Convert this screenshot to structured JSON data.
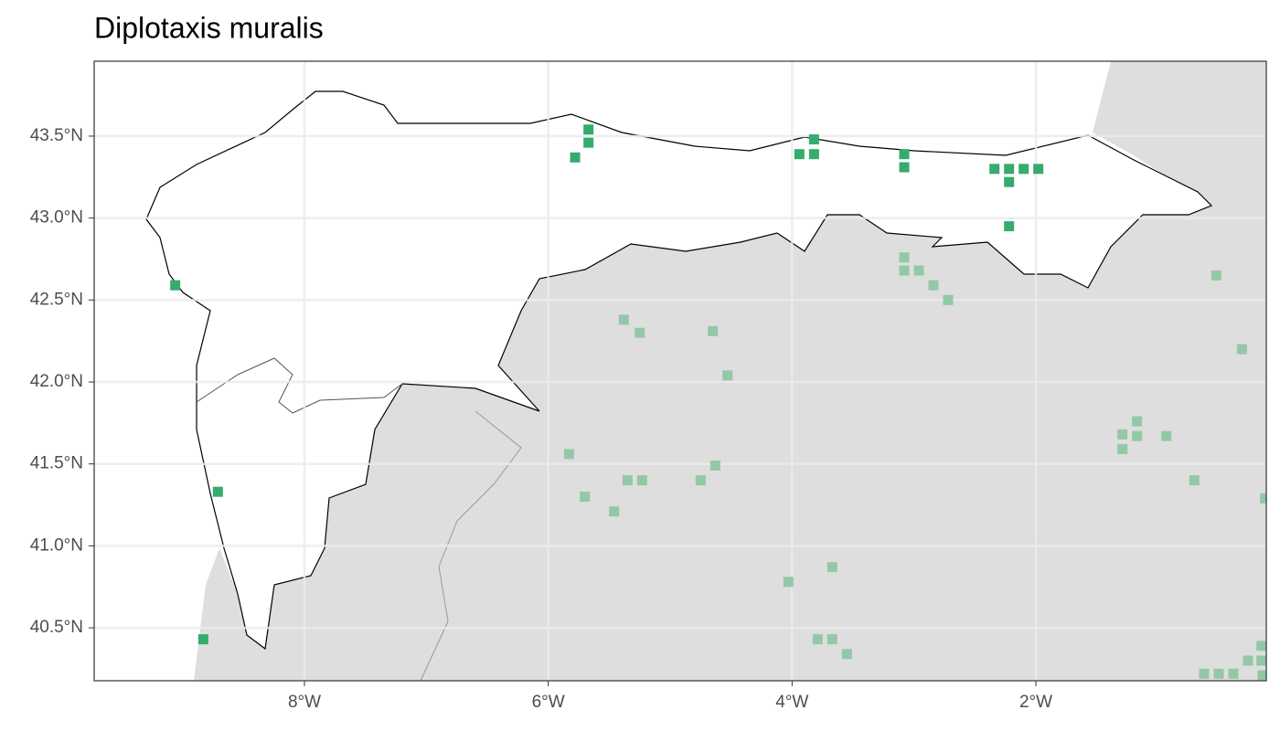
{
  "chart_data": {
    "type": "scatter",
    "title": "Diplotaxis muralis",
    "xlim": [
      -9.725,
      -0.11
    ],
    "ylim": [
      40.177,
      43.957
    ],
    "xticks": [
      {
        "value": -8,
        "label": "8°W"
      },
      {
        "value": -6,
        "label": "6°W"
      },
      {
        "value": -4,
        "label": "4°W"
      },
      {
        "value": -2,
        "label": "2°W"
      }
    ],
    "yticks": [
      {
        "value": 40.5,
        "label": "40.5°N"
      },
      {
        "value": 41,
        "label": "41.0°N"
      },
      {
        "value": 41.5,
        "label": "41.5°N"
      },
      {
        "value": 42,
        "label": "42.0°N"
      },
      {
        "value": 42.5,
        "label": "42.5°N"
      },
      {
        "value": 43,
        "label": "43.0°N"
      },
      {
        "value": 43.5,
        "label": "43.5°N"
      }
    ],
    "grid": true,
    "series": [
      {
        "color": "#35ab6c",
        "x": [
          -9.06,
          -8.71,
          -8.83,
          -5.78,
          -5.67,
          -5.67,
          -3.94,
          -3.82,
          -3.82,
          -3.08,
          -3.08,
          -2.34,
          -2.22,
          -2.1,
          -1.98,
          -2.22,
          -2.22
        ],
        "y": [
          42.59,
          41.33,
          40.43,
          43.37,
          43.46,
          43.54,
          43.39,
          43.48,
          43.39,
          43.39,
          43.31,
          43.3,
          43.3,
          43.3,
          43.3,
          43.22,
          42.95
        ]
      },
      {
        "color": "#93c8a6",
        "x": [
          -3.08,
          -3.08,
          -2.96,
          -2.84,
          -2.72,
          -5.38,
          -5.25,
          -4.65,
          -4.53,
          -5.83,
          -5.7,
          -5.35,
          -5.23,
          -5.46,
          -4.75,
          -4.63,
          -4.03,
          -3.67,
          -3.79,
          -3.67,
          -3.55,
          -0.52,
          -0.31,
          -1.17,
          -1.29,
          -1.17,
          -0.93,
          -1.29,
          -0.7,
          -0.12,
          -0.15,
          -0.15,
          -0.26,
          -0.62,
          -0.5,
          -0.38,
          -0.14
        ],
        "y": [
          42.76,
          42.68,
          42.68,
          42.59,
          42.5,
          42.38,
          42.3,
          42.31,
          42.04,
          41.56,
          41.3,
          41.4,
          41.4,
          41.21,
          41.4,
          41.49,
          40.78,
          40.87,
          40.43,
          40.43,
          40.34,
          42.65,
          42.2,
          41.76,
          41.68,
          41.67,
          41.67,
          41.59,
          41.4,
          41.29,
          40.39,
          40.3,
          40.3,
          40.22,
          40.22,
          40.22,
          40.21
        ]
      }
    ]
  }
}
